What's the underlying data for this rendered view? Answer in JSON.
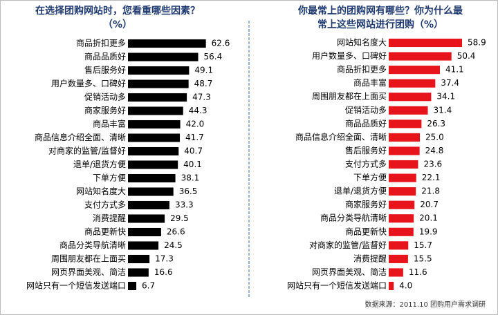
{
  "chart_data": [
    {
      "type": "bar",
      "orientation": "horizontal",
      "title": "在选择团购网站时，您看重哪些因素？（%）",
      "color": "#000000",
      "categories": [
        "商品折扣更多",
        "商品品质好",
        "售后服务好",
        "用户数量多、口碑好",
        "促销活动多",
        "商家服务好",
        "商品丰富",
        "商品信息介绍全面、清晰",
        "对商家的监管/监督好",
        "退单/退货方便",
        "下单方便",
        "网站知名度大",
        "支付方式多",
        "消费提醒",
        "商品更新快",
        "商品分类导航清晰",
        "周围朋友都在上面买",
        "网页界面美观、简洁",
        "网站只有一个短信发送端口"
      ],
      "values": [
        62.6,
        56.4,
        49.1,
        48.7,
        47.3,
        44.3,
        42.0,
        41.7,
        40.7,
        40.1,
        38.1,
        36.5,
        33.3,
        29.5,
        26.6,
        24.5,
        17.3,
        16.6,
        6.7
      ],
      "value_labels": [
        "62.6",
        "56.4",
        "49.1",
        "48.7",
        "47.3",
        "44.3",
        "42.0",
        "41.7",
        "40.7",
        "40.1",
        "38.1",
        "36.5",
        "33.3",
        "29.5",
        "26.6",
        "24.5",
        "17.3",
        "16.6",
        "6.7"
      ]
    },
    {
      "type": "bar",
      "orientation": "horizontal",
      "title": "你最常上的团购网有哪些？你为什么最常上这些网站进行团购（%）",
      "color": "#e8141b",
      "categories": [
        "网站知名度大",
        "用户数量多、口碑好",
        "商品折扣更多",
        "商品丰富",
        "周围朋友都在上面买",
        "促销活动多",
        "商品品质好",
        "商品信息介绍全面、清晰",
        "售后服务好",
        "支付方式多",
        "下单方便",
        "退单/退货方便",
        "商家服务好",
        "商品分类导航清晰",
        "商品更新快",
        "对商家的监管/监督好",
        "消费提醒",
        "网页界面美观、简洁",
        "网站只有一个短信发送端口"
      ],
      "values": [
        58.9,
        50.4,
        41.1,
        37.4,
        34.1,
        31.4,
        26.3,
        25.0,
        24.8,
        23.6,
        22.1,
        21.8,
        20.7,
        20.1,
        19.9,
        15.7,
        15.5,
        11.6,
        4.0
      ],
      "value_labels": [
        "58.9",
        "50.4",
        "41.1",
        "37.4",
        "34.1",
        "31.4",
        "26.3",
        "25.0",
        "24.8",
        "23.6",
        "22.1",
        "21.8",
        "20.7",
        "20.1",
        "19.9",
        "15.7",
        "15.5",
        "11.6",
        "4.0"
      ]
    }
  ],
  "source": "数据来源：2011.10 团购用户需求调研"
}
